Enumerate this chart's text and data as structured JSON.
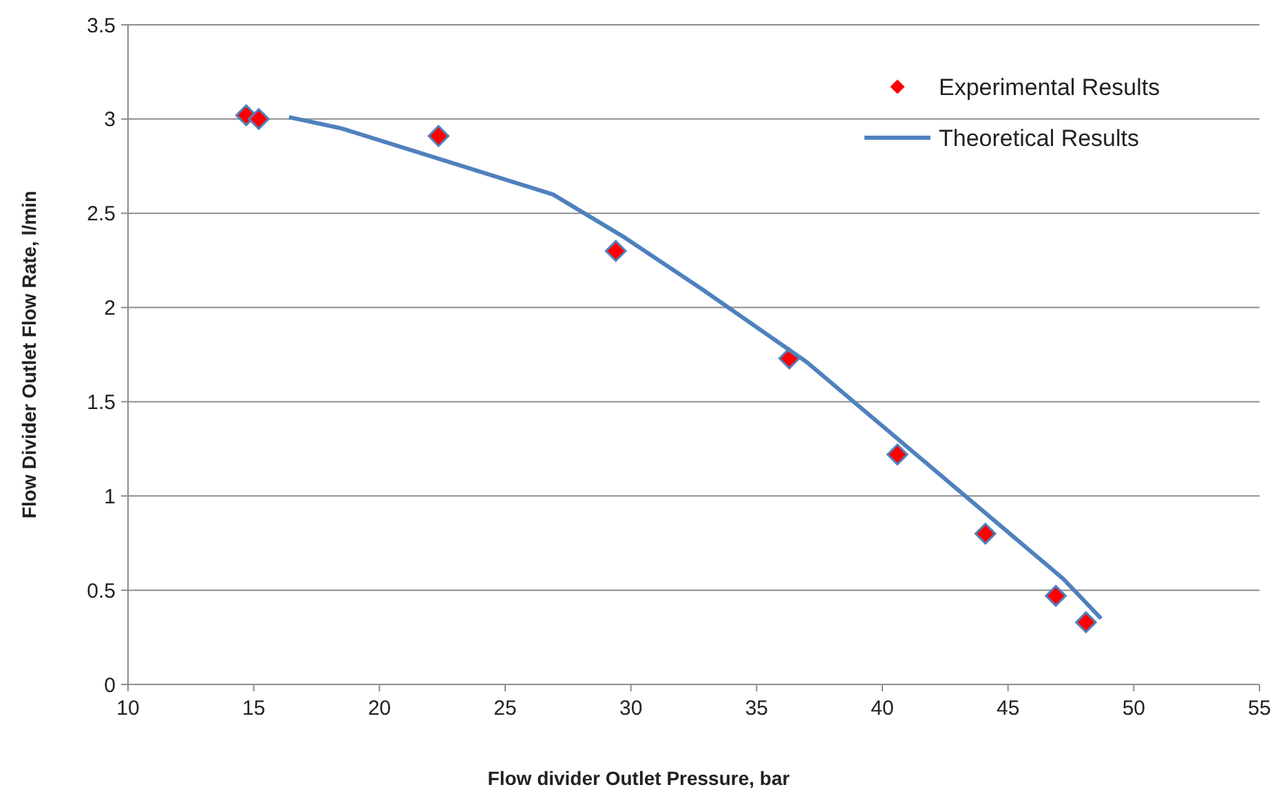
{
  "chart_data": {
    "type": "scatter",
    "xlabel": "Flow divider Outlet Pressure, bar",
    "ylabel": "Flow Divider Outlet Flow Rate, l/min",
    "xlim": [
      10,
      55
    ],
    "xticks": [
      10,
      15,
      20,
      25,
      30,
      35,
      40,
      45,
      50,
      55
    ],
    "ylim": [
      0,
      3.5
    ],
    "yticks": [
      0,
      0.5,
      1,
      1.5,
      2,
      2.5,
      3,
      3.5
    ],
    "grid": "y",
    "legend": "top right",
    "series": [
      {
        "name": "Experimental Results",
        "marker": "diamond",
        "color": "#ff0000",
        "x": [
          14.7,
          15.2,
          22.35,
          29.4,
          36.3,
          40.6,
          44.1,
          46.9,
          48.1
        ],
        "values": [
          3.02,
          3.0,
          2.91,
          2.3,
          1.73,
          1.22,
          0.8,
          0.47,
          0.33
        ]
      },
      {
        "name": "Theoretical Results",
        "type": "line",
        "marker": "none",
        "line_style": "solid",
        "color": "#4f81bd",
        "x": [
          16.4,
          18.5,
          26.9,
          29.65,
          32.8,
          37.0,
          47.2,
          48.7
        ],
        "values": [
          3.01,
          2.95,
          2.6,
          2.38,
          2.1,
          1.71,
          0.56,
          0.35
        ]
      }
    ]
  }
}
